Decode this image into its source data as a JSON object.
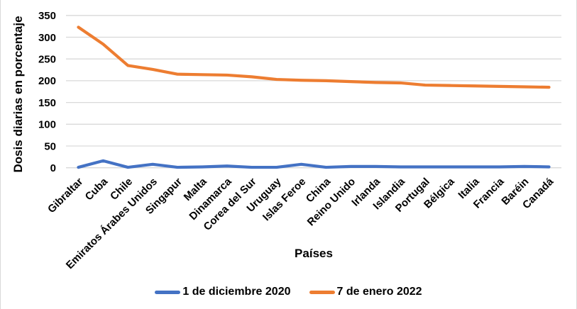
{
  "chart_data": {
    "type": "line",
    "title": "",
    "xlabel": "Países",
    "ylabel": "Dosis diarias en porcentaje",
    "ylim": [
      0,
      350
    ],
    "yticks": [
      0,
      50,
      100,
      150,
      200,
      250,
      300,
      350
    ],
    "grid": true,
    "legend_position": "bottom-center",
    "categories": [
      "Gibraltar",
      "Cuba",
      "Chile",
      "Emiratos Árabes Unidos",
      "Singapur",
      "Malta",
      "Dinamarca",
      "Corea del Sur",
      "Uruguay",
      "Islas Feroe",
      "China",
      "Reino Unido",
      "Irlanda",
      "Islandia",
      "Portugal",
      "Bélgica",
      "Italia",
      "Francia",
      "Baréin",
      "Canadá"
    ],
    "series": [
      {
        "name": "1 de diciembre 2020",
        "color": "#4472C4",
        "values": [
          1,
          16,
          1,
          8,
          1,
          2,
          4,
          1,
          1,
          8,
          1,
          3,
          3,
          2,
          2,
          2,
          2,
          2,
          3,
          2
        ]
      },
      {
        "name": "7 de enero 2022",
        "color": "#ED7D31",
        "values": [
          323,
          284,
          235,
          226,
          215,
          214,
          213,
          209,
          203,
          201,
          200,
          198,
          196,
          195,
          190,
          189,
          188,
          187,
          186,
          185
        ]
      }
    ],
    "colors": {
      "gridline": "#D9D9D9",
      "border": "#D9D9D9",
      "text": "#000000",
      "background": "#FFFFFF"
    }
  }
}
